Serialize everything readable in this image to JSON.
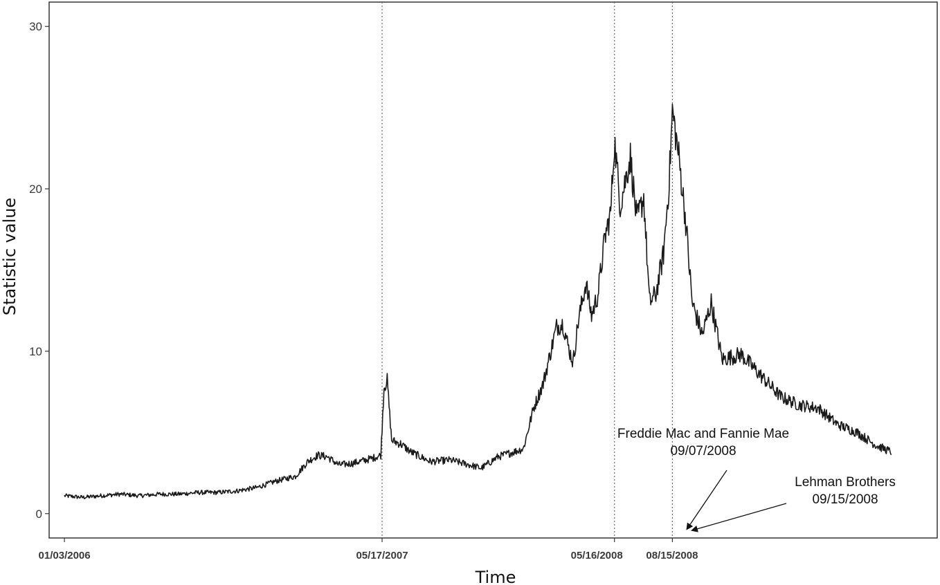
{
  "chart_data": {
    "type": "line",
    "xlabel": "Time",
    "ylabel": "Statistic value",
    "ylim": [
      -1.5,
      31.5
    ],
    "y_ticks": [
      0,
      10,
      20,
      30
    ],
    "x_range": [
      "2005-12-10",
      "2009-10-05"
    ],
    "x_tick_labels": [
      "01/03/2006",
      "05/17/2007",
      "05/16/2008",
      "08/15/2008"
    ],
    "vlines": [
      "2007-05-17",
      "2008-05-16",
      "2008-08-15"
    ],
    "grid": false,
    "series": [
      {
        "points": [
          [
            "2006-01-03",
            1.1
          ],
          [
            "2006-02-01",
            1.0
          ],
          [
            "2006-03-01",
            1.1
          ],
          [
            "2006-04-01",
            1.2
          ],
          [
            "2006-05-01",
            1.1
          ],
          [
            "2006-06-01",
            1.2
          ],
          [
            "2006-07-01",
            1.2
          ],
          [
            "2006-08-01",
            1.3
          ],
          [
            "2006-09-01",
            1.3
          ],
          [
            "2006-10-01",
            1.4
          ],
          [
            "2006-11-01",
            1.6
          ],
          [
            "2006-12-01",
            2.0
          ],
          [
            "2007-01-01",
            2.3
          ],
          [
            "2007-01-20",
            3.2
          ],
          [
            "2007-02-05",
            3.6
          ],
          [
            "2007-02-20",
            3.5
          ],
          [
            "2007-03-10",
            3.0
          ],
          [
            "2007-04-01",
            3.1
          ],
          [
            "2007-05-01",
            3.4
          ],
          [
            "2007-05-15",
            3.6
          ],
          [
            "2007-05-20",
            7.8
          ],
          [
            "2007-05-25",
            8.2
          ],
          [
            "2007-06-01",
            4.5
          ],
          [
            "2007-06-15",
            4.3
          ],
          [
            "2007-07-01",
            3.8
          ],
          [
            "2007-08-01",
            3.2
          ],
          [
            "2007-09-01",
            3.3
          ],
          [
            "2007-10-01",
            3.0
          ],
          [
            "2007-10-20",
            2.8
          ],
          [
            "2007-11-15",
            3.5
          ],
          [
            "2007-12-10",
            3.8
          ],
          [
            "2007-12-25",
            4.0
          ],
          [
            "2008-01-10",
            6.5
          ],
          [
            "2008-01-25",
            8.0
          ],
          [
            "2008-02-15",
            11.5
          ],
          [
            "2008-02-25",
            11.7
          ],
          [
            "2008-03-05",
            10.2
          ],
          [
            "2008-03-12",
            9.3
          ],
          [
            "2008-03-20",
            11.8
          ],
          [
            "2008-04-01",
            14.2
          ],
          [
            "2008-04-10",
            12.2
          ],
          [
            "2008-04-20",
            13.5
          ],
          [
            "2008-05-01",
            17.0
          ],
          [
            "2008-05-10",
            18.5
          ],
          [
            "2008-05-16",
            23.0
          ],
          [
            "2008-05-25",
            19.0
          ],
          [
            "2008-06-10",
            22.0
          ],
          [
            "2008-06-20",
            18.0
          ],
          [
            "2008-07-01",
            19.5
          ],
          [
            "2008-07-10",
            13.0
          ],
          [
            "2008-07-20",
            13.5
          ],
          [
            "2008-08-01",
            16.0
          ],
          [
            "2008-08-10",
            20.5
          ],
          [
            "2008-08-15",
            24.8
          ],
          [
            "2008-08-25",
            22.0
          ],
          [
            "2008-09-05",
            18.0
          ],
          [
            "2008-09-15",
            13.0
          ],
          [
            "2008-10-01",
            11.0
          ],
          [
            "2008-10-15",
            13.0
          ],
          [
            "2008-11-01",
            9.5
          ],
          [
            "2008-12-01",
            9.8
          ],
          [
            "2009-01-01",
            8.5
          ],
          [
            "2009-02-01",
            7.2
          ],
          [
            "2009-03-01",
            6.7
          ],
          [
            "2009-04-01",
            6.5
          ],
          [
            "2009-05-01",
            5.5
          ],
          [
            "2009-06-01",
            5.0
          ],
          [
            "2009-07-01",
            4.2
          ],
          [
            "2009-07-25",
            3.8
          ]
        ]
      }
    ],
    "annotations": [
      {
        "lines": [
          "Freddie Mac and Fannie Mae",
          "09/07/2008"
        ],
        "date": "2008-09-07"
      },
      {
        "lines": [
          "Lehman Brothers",
          "09/15/2008"
        ],
        "date": "2008-09-15"
      }
    ]
  }
}
